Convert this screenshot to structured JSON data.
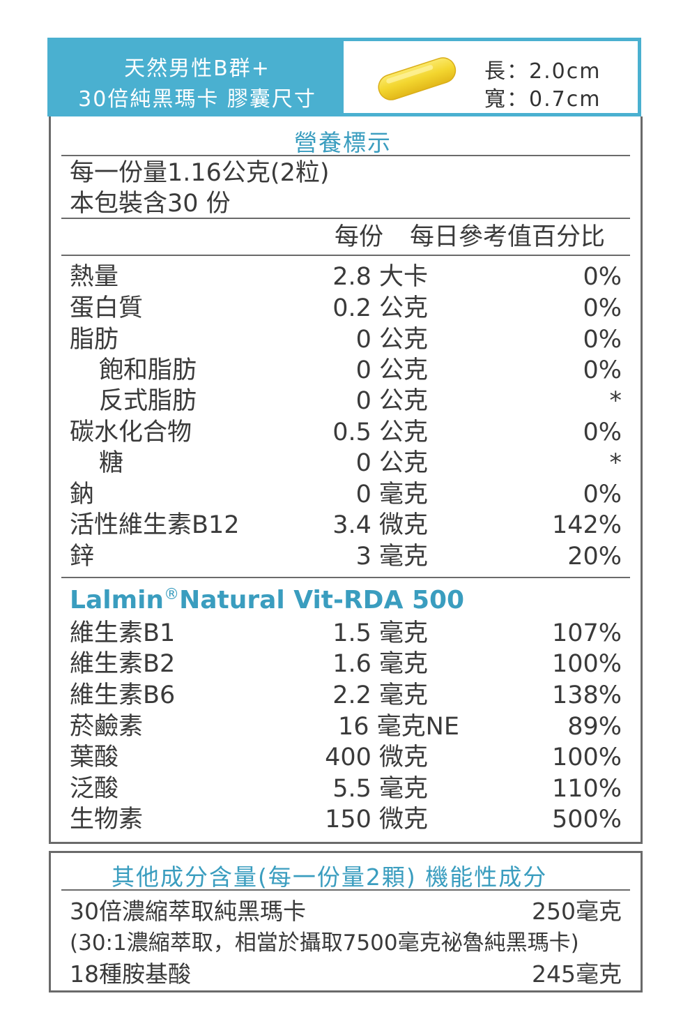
{
  "header": {
    "line1": "天然男性B群+",
    "line2": "30倍純黑瑪卡 膠囊尺寸",
    "length": "長：2.0cm",
    "width": "寬：0.7cm"
  },
  "nutrition": {
    "title": "營養標示",
    "serving": "每一份量1.16公克(2粒)",
    "servings_per_pack": "本包裝含30 份",
    "col_per_serving": "每份",
    "col_daily": "每日參考值百分比",
    "rows": [
      {
        "name": "熱量",
        "amount": "2.8 大卡",
        "pct": "0%"
      },
      {
        "name": "蛋白質",
        "amount": "0.2 公克",
        "pct": "0%"
      },
      {
        "name": "脂肪",
        "amount": "0 公克",
        "pct": "0%"
      },
      {
        "name": "飽和脂肪",
        "amount": "0 公克",
        "pct": "0%"
      },
      {
        "name": "反式脂肪",
        "amount": "0 公克",
        "pct": "*"
      },
      {
        "name": "碳水化合物",
        "amount": "0.5 公克",
        "pct": "0%"
      },
      {
        "name": "糖",
        "amount": "0 公克",
        "pct": "*"
      },
      {
        "name": "鈉",
        "amount": "0 毫克",
        "pct": "0%"
      },
      {
        "name": "活性維生素B12",
        "amount": "3.4 微克",
        "pct": "142%"
      },
      {
        "name": "鋅",
        "amount": "3 毫克",
        "pct": "20%"
      }
    ],
    "brand": "Lalmin",
    "brand_mark": "®",
    "brand_rest": "Natural Vit-RDA 500",
    "vitamins": [
      {
        "name": "維生素B1",
        "amount": "1.5 毫克",
        "pct": "107%"
      },
      {
        "name": "維生素B2",
        "amount": "1.6 毫克",
        "pct": "100%"
      },
      {
        "name": "維生素B6",
        "amount": "2.2 毫克",
        "pct": "138%"
      },
      {
        "name": "菸鹼素",
        "amount": "16 毫克NE",
        "pct": "89%"
      },
      {
        "name": "葉酸",
        "amount": "400 微克",
        "pct": "100%"
      },
      {
        "name": "泛酸",
        "amount": "5.5 毫克",
        "pct": "110%"
      },
      {
        "name": "生物素",
        "amount": "150 微克",
        "pct": "500%"
      }
    ]
  },
  "other": {
    "title": "其他成分含量(每一份量2顆) 機能性成分",
    "item1_name": "30倍濃縮萃取純黑瑪卡",
    "item1_amount": "250毫克",
    "item1_note": "(30:1濃縮萃取，相當於攝取7500毫克祕魯純黑瑪卡)",
    "item2_name": "18種胺基酸",
    "item2_amount": "245毫克"
  },
  "colors": {
    "accent": "#4ab0d0",
    "accent_text": "#3a9dbf",
    "capsule": "#f3dc3c",
    "border": "#6a6a6a"
  }
}
